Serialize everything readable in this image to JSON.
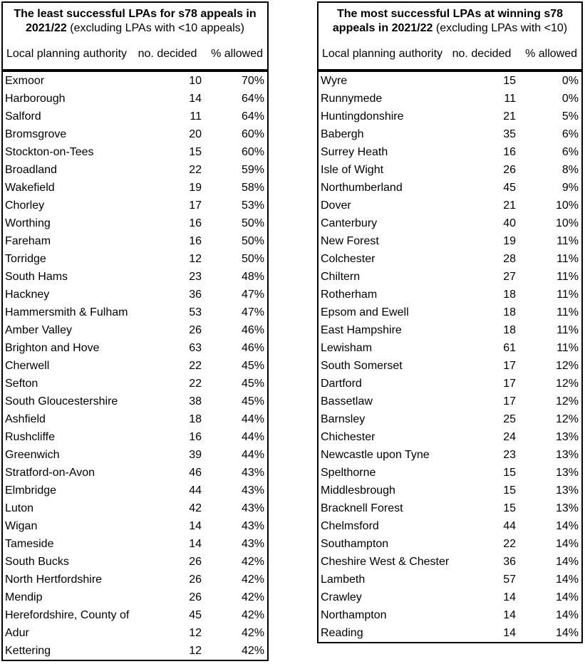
{
  "tables": [
    {
      "title_bold": "The least successful LPAs for s78 appeals in 2021/22",
      "title_rest": " (excluding LPAs with <10 appeals)",
      "columns": [
        "Local planning authority",
        "no. decided",
        "% allowed"
      ],
      "rows": [
        [
          "Exmoor",
          "10",
          "70%"
        ],
        [
          "Harborough",
          "14",
          "64%"
        ],
        [
          "Salford",
          "11",
          "64%"
        ],
        [
          "Bromsgrove",
          "20",
          "60%"
        ],
        [
          "Stockton-on-Tees",
          "15",
          "60%"
        ],
        [
          "Broadland",
          "22",
          "59%"
        ],
        [
          "Wakefield",
          "19",
          "58%"
        ],
        [
          "Chorley",
          "17",
          "53%"
        ],
        [
          "Worthing",
          "16",
          "50%"
        ],
        [
          "Fareham",
          "16",
          "50%"
        ],
        [
          "Torridge",
          "12",
          "50%"
        ],
        [
          "South Hams",
          "23",
          "48%"
        ],
        [
          "Hackney",
          "36",
          "47%"
        ],
        [
          "Hammersmith & Fulham",
          "53",
          "47%"
        ],
        [
          "Amber Valley",
          "26",
          "46%"
        ],
        [
          "Brighton and Hove",
          "63",
          "46%"
        ],
        [
          "Cherwell",
          "22",
          "45%"
        ],
        [
          "Sefton",
          "22",
          "45%"
        ],
        [
          "South Gloucestershire",
          "38",
          "45%"
        ],
        [
          "Ashfield",
          "18",
          "44%"
        ],
        [
          "Rushcliffe",
          "16",
          "44%"
        ],
        [
          "Greenwich",
          "39",
          "44%"
        ],
        [
          "Stratford-on-Avon",
          "46",
          "43%"
        ],
        [
          "Elmbridge",
          "44",
          "43%"
        ],
        [
          "Luton",
          "42",
          "43%"
        ],
        [
          "Wigan",
          "14",
          "43%"
        ],
        [
          "Tameside",
          "14",
          "43%"
        ],
        [
          "South Bucks",
          "26",
          "42%"
        ],
        [
          "North Hertfordshire",
          "26",
          "42%"
        ],
        [
          "Mendip",
          "26",
          "42%"
        ],
        [
          "Herefordshire, County of",
          "45",
          "42%"
        ],
        [
          "Adur",
          "12",
          "42%"
        ],
        [
          "Kettering",
          "12",
          "42%"
        ]
      ]
    },
    {
      "title_bold": "The most successful LPAs at winning s78 appeals in 2021/22",
      "title_rest": " (excluding LPAs with <10)",
      "columns": [
        "Local planning authority",
        "no. decided",
        "% allowed"
      ],
      "rows": [
        [
          "Wyre",
          "15",
          "0%"
        ],
        [
          "Runnymede",
          "11",
          "0%"
        ],
        [
          "Huntingdonshire",
          "21",
          "5%"
        ],
        [
          "Babergh",
          "35",
          "6%"
        ],
        [
          "Surrey Heath",
          "16",
          "6%"
        ],
        [
          "Isle of Wight",
          "26",
          "8%"
        ],
        [
          "Northumberland",
          "45",
          "9%"
        ],
        [
          "Dover",
          "21",
          "10%"
        ],
        [
          "Canterbury",
          "40",
          "10%"
        ],
        [
          "New Forest",
          "19",
          "11%"
        ],
        [
          "Colchester",
          "28",
          "11%"
        ],
        [
          "Chiltern",
          "27",
          "11%"
        ],
        [
          "Rotherham",
          "18",
          "11%"
        ],
        [
          "Epsom and Ewell",
          "18",
          "11%"
        ],
        [
          "East Hampshire",
          "18",
          "11%"
        ],
        [
          "Lewisham",
          "61",
          "11%"
        ],
        [
          "South Somerset",
          "17",
          "12%"
        ],
        [
          "Dartford",
          "17",
          "12%"
        ],
        [
          "Bassetlaw",
          "17",
          "12%"
        ],
        [
          "Barnsley",
          "25",
          "12%"
        ],
        [
          "Chichester",
          "24",
          "13%"
        ],
        [
          "Newcastle upon Tyne",
          "23",
          "13%"
        ],
        [
          "Spelthorne",
          "15",
          "13%"
        ],
        [
          "Middlesbrough",
          "15",
          "13%"
        ],
        [
          "Bracknell Forest",
          "15",
          "13%"
        ],
        [
          "Chelmsford",
          "44",
          "14%"
        ],
        [
          "Southampton",
          "22",
          "14%"
        ],
        [
          "Cheshire West & Chester",
          "36",
          "14%"
        ],
        [
          "Lambeth",
          "57",
          "14%"
        ],
        [
          "Crawley",
          "14",
          "14%"
        ],
        [
          "Northampton",
          "14",
          "14%"
        ],
        [
          "Reading",
          "14",
          "14%"
        ]
      ]
    }
  ]
}
